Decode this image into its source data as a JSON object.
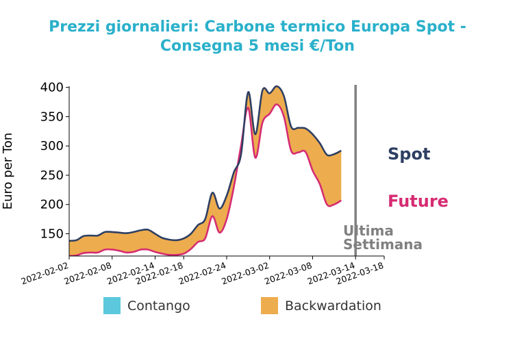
{
  "chart_data": {
    "type": "area",
    "title_lines": [
      "Prezzi giornalieri: Carbone termico Europa Spot -",
      "Consegna 5 mesi €/Ton"
    ],
    "ylabel": "Euro per Ton",
    "xlabel": "",
    "ylim": [
      112,
      402
    ],
    "yticks": [
      150,
      200,
      250,
      300,
      350,
      400
    ],
    "x_start": "2022-02-02",
    "x_end": "2022-03-18",
    "xticks": [
      "2022-02-02",
      "2022-02-08",
      "2022-02-14",
      "2022-02-18",
      "2022-02-24",
      "2022-03-02",
      "2022-03-08",
      "2022-03-14",
      "2022-03-18"
    ],
    "series": [
      {
        "name": "Spot",
        "color": "#2e3f63",
        "points": [
          [
            "2022-02-02",
            138
          ],
          [
            "2022-02-03",
            139
          ],
          [
            "2022-02-04",
            146
          ],
          [
            "2022-02-05",
            147
          ],
          [
            "2022-02-06",
            147
          ],
          [
            "2022-02-07",
            153
          ],
          [
            "2022-02-08",
            153
          ],
          [
            "2022-02-09",
            152
          ],
          [
            "2022-02-10",
            151
          ],
          [
            "2022-02-11",
            153
          ],
          [
            "2022-02-12",
            156
          ],
          [
            "2022-02-13",
            157
          ],
          [
            "2022-02-14",
            150
          ],
          [
            "2022-02-15",
            143
          ],
          [
            "2022-02-16",
            140
          ],
          [
            "2022-02-17",
            139
          ],
          [
            "2022-02-18",
            142
          ],
          [
            "2022-02-19",
            150
          ],
          [
            "2022-02-20",
            165
          ],
          [
            "2022-02-21",
            175
          ],
          [
            "2022-02-22",
            220
          ],
          [
            "2022-02-23",
            193
          ],
          [
            "2022-02-24",
            215
          ],
          [
            "2022-02-25",
            255
          ],
          [
            "2022-02-26",
            285
          ],
          [
            "2022-02-27",
            392
          ],
          [
            "2022-02-28",
            320
          ],
          [
            "2022-03-01",
            395
          ],
          [
            "2022-03-02",
            390
          ],
          [
            "2022-03-03",
            402
          ],
          [
            "2022-03-04",
            385
          ],
          [
            "2022-03-05",
            333
          ],
          [
            "2022-03-06",
            331
          ],
          [
            "2022-03-07",
            330
          ],
          [
            "2022-03-08",
            320
          ],
          [
            "2022-03-09",
            305
          ],
          [
            "2022-03-10",
            285
          ],
          [
            "2022-03-11",
            286
          ],
          [
            "2022-03-12",
            292
          ]
        ]
      },
      {
        "name": "Future",
        "color": "#d52c72",
        "points": [
          [
            "2022-02-02",
            112
          ],
          [
            "2022-02-03",
            113
          ],
          [
            "2022-02-04",
            117
          ],
          [
            "2022-02-05",
            118
          ],
          [
            "2022-02-06",
            118
          ],
          [
            "2022-02-07",
            123
          ],
          [
            "2022-02-08",
            123
          ],
          [
            "2022-02-09",
            121
          ],
          [
            "2022-02-10",
            118
          ],
          [
            "2022-02-11",
            119
          ],
          [
            "2022-02-12",
            123
          ],
          [
            "2022-02-13",
            123
          ],
          [
            "2022-02-14",
            119
          ],
          [
            "2022-02-15",
            116
          ],
          [
            "2022-02-16",
            114
          ],
          [
            "2022-02-17",
            114
          ],
          [
            "2022-02-18",
            116
          ],
          [
            "2022-02-19",
            124
          ],
          [
            "2022-02-20",
            136
          ],
          [
            "2022-02-21",
            142
          ],
          [
            "2022-02-22",
            180
          ],
          [
            "2022-02-23",
            152
          ],
          [
            "2022-02-24",
            175
          ],
          [
            "2022-02-25",
            230
          ],
          [
            "2022-02-26",
            300
          ],
          [
            "2022-02-27",
            365
          ],
          [
            "2022-02-28",
            280
          ],
          [
            "2022-03-01",
            340
          ],
          [
            "2022-03-02",
            355
          ],
          [
            "2022-03-03",
            371
          ],
          [
            "2022-03-04",
            350
          ],
          [
            "2022-03-05",
            292
          ],
          [
            "2022-03-06",
            289
          ],
          [
            "2022-03-07",
            290
          ],
          [
            "2022-03-08",
            258
          ],
          [
            "2022-03-09",
            235
          ],
          [
            "2022-03-10",
            200
          ],
          [
            "2022-03-11",
            200
          ],
          [
            "2022-03-12",
            207
          ]
        ]
      }
    ],
    "marker": {
      "date": "2022-03-14",
      "label_lines": [
        "Ultima",
        "Settimana"
      ],
      "color": "#808080"
    },
    "legend": {
      "placement": "bottom",
      "items": [
        {
          "label": "Contango",
          "color": "#5bc8dc"
        },
        {
          "label": "Backwardation",
          "color": "#edac4e"
        }
      ]
    },
    "colors": {
      "title": "#2ab0cb",
      "fill": "#edac4e"
    },
    "grid": false
  }
}
